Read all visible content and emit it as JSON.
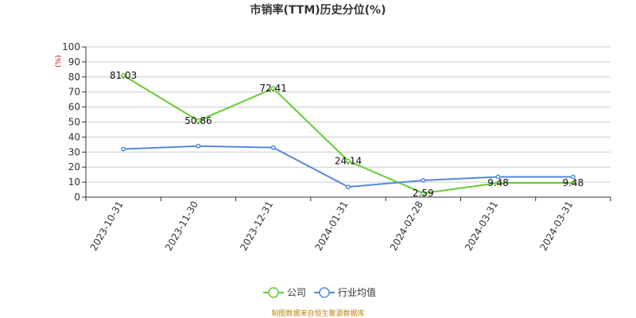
{
  "chart_data": {
    "type": "line",
    "title": "市销率(TTM)历史分位(%)",
    "ylabel": "(%)",
    "xlabel": "",
    "ylim": [
      0,
      100
    ],
    "yticks": [
      0,
      10,
      20,
      30,
      40,
      50,
      60,
      70,
      80,
      90,
      100
    ],
    "categories": [
      "2023-10-31",
      "2023-11-30",
      "2023-12-31",
      "2024-01-31",
      "2024-02-28",
      "2024-03-31",
      "2024-03-31"
    ],
    "grid": true,
    "legend_position": "bottom",
    "series": [
      {
        "name": "公司",
        "color": "#66cc33",
        "values": [
          81.03,
          50.86,
          72.41,
          24.14,
          2.59,
          9.48,
          9.48
        ],
        "data_labels": [
          "81.03",
          "50.86",
          "72.41",
          "24.14",
          "2.59",
          "9.48",
          "9.48"
        ]
      },
      {
        "name": "行业均值",
        "color": "#5588dd",
        "values": [
          32,
          34,
          33,
          6.8,
          11.2,
          13.5,
          13.5
        ]
      }
    ]
  },
  "footer": "制图数据来自恒生聚源数据库"
}
